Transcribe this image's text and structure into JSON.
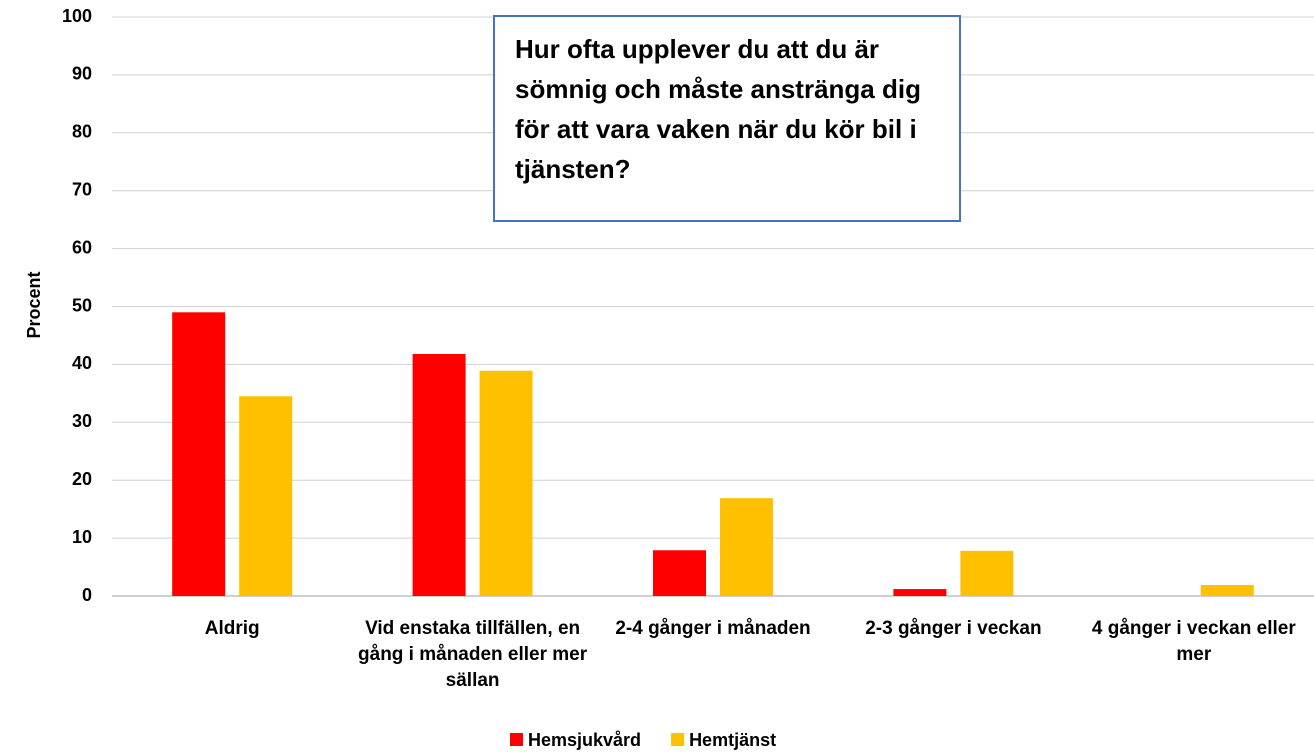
{
  "chart_data": {
    "type": "bar",
    "title": "Hur ofta upplever du att du är sömnig och måste anstränga dig för att vara vaken när du kör bil i tjänsten?",
    "y_label": "Procent",
    "categories": [
      "Aldrig",
      "Vid enstaka tillfällen, en gång i månaden eller mer sällan",
      "2-4 gånger i månaden",
      "2-3 gånger i veckan",
      "4 gånger i veckan eller mer"
    ],
    "series": [
      {
        "name": "Hemsjukvård",
        "color": "#ff0000",
        "values": [
          49,
          41.8,
          7.9,
          1.2,
          0
        ]
      },
      {
        "name": "Hemtjänst",
        "color": "#ffc000",
        "values": [
          34.5,
          38.9,
          16.9,
          7.8,
          1.9
        ]
      }
    ],
    "ylim": [
      0,
      100
    ],
    "yticks": [
      0,
      10,
      20,
      30,
      40,
      50,
      60,
      70,
      80,
      90,
      100
    ],
    "grid": true,
    "legend": "bottom"
  }
}
